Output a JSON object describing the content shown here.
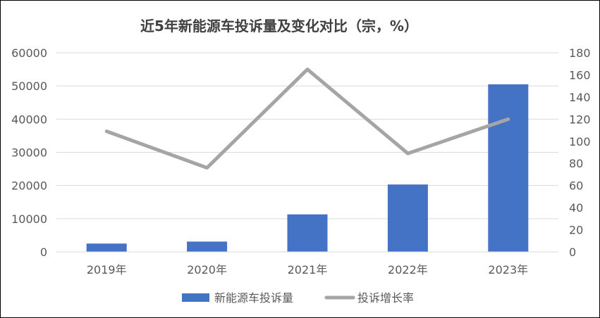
{
  "chart_data": {
    "type": "bar",
    "title": "近5年新能源车投诉量及变化对比（宗，%）",
    "categories": [
      "2019年",
      "2020年",
      "2021年",
      "2022年",
      "2023年"
    ],
    "series": [
      {
        "name": "新能源车投诉量",
        "type": "bar",
        "axis": "left",
        "color": "#4472C4",
        "values": [
          2500,
          3100,
          11300,
          20300,
          50500
        ]
      },
      {
        "name": "投诉增长率",
        "type": "line",
        "axis": "right",
        "color": "#A5A5A5",
        "values": [
          109,
          76,
          165,
          89,
          120
        ]
      }
    ],
    "y_left": {
      "ylim": [
        0,
        60000
      ],
      "ticks": [
        "0",
        "10000",
        "20000",
        "30000",
        "40000",
        "50000",
        "60000"
      ]
    },
    "y_right": {
      "ylim": [
        0,
        180
      ],
      "ticks": [
        "0",
        "20",
        "40",
        "60",
        "80",
        "100",
        "120",
        "140",
        "160",
        "180"
      ]
    },
    "grid": true,
    "legend_position": "bottom"
  }
}
